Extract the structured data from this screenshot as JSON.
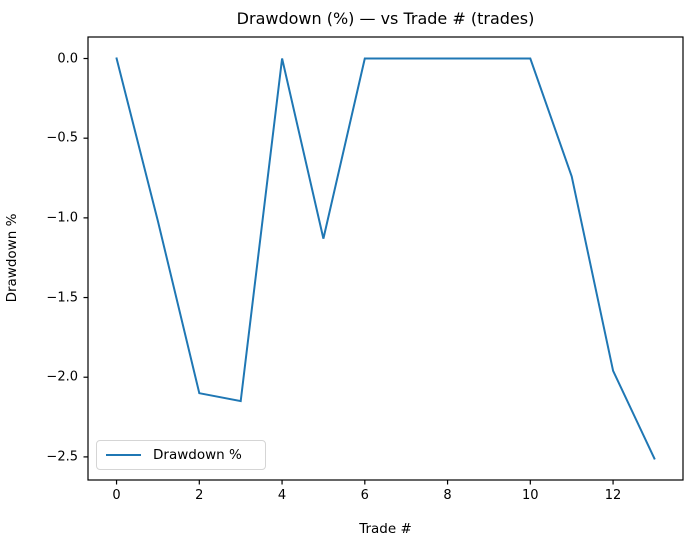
{
  "chart_data": {
    "type": "line",
    "title": "Drawdown (%) — vs Trade # (trades)",
    "xlabel": "Trade #",
    "ylabel": "Drawdown %",
    "x": [
      0,
      1,
      2,
      3,
      4,
      5,
      6,
      7,
      8,
      9,
      10,
      11,
      12,
      13
    ],
    "series": [
      {
        "name": "Drawdown %",
        "color": "#1f77b4",
        "values": [
          0.0,
          -1.02,
          -2.1,
          -2.15,
          0.0,
          -1.13,
          0.0,
          0.0,
          0.0,
          0.0,
          0.0,
          -0.74,
          -1.96,
          -2.51
        ]
      }
    ],
    "xticks": [
      0,
      2,
      4,
      6,
      8,
      10,
      12
    ],
    "xtick_labels": [
      "0",
      "2",
      "4",
      "6",
      "8",
      "10",
      "12"
    ],
    "yticks": [
      0.0,
      -0.5,
      -1.0,
      -1.5,
      -2.0,
      -2.5
    ],
    "ytick_labels": [
      "0.0",
      "−0.5",
      "−1.0",
      "−1.5",
      "−2.0",
      "−2.5"
    ],
    "xlim": [
      -0.69,
      13.69
    ],
    "ylim": [
      -2.645,
      0.135
    ],
    "grid": false,
    "legend_position": "lower left",
    "legend_label": "Drawdown %",
    "line_color": "#1f77b4",
    "spine_color": "#000000",
    "background_color": "#ffffff"
  }
}
